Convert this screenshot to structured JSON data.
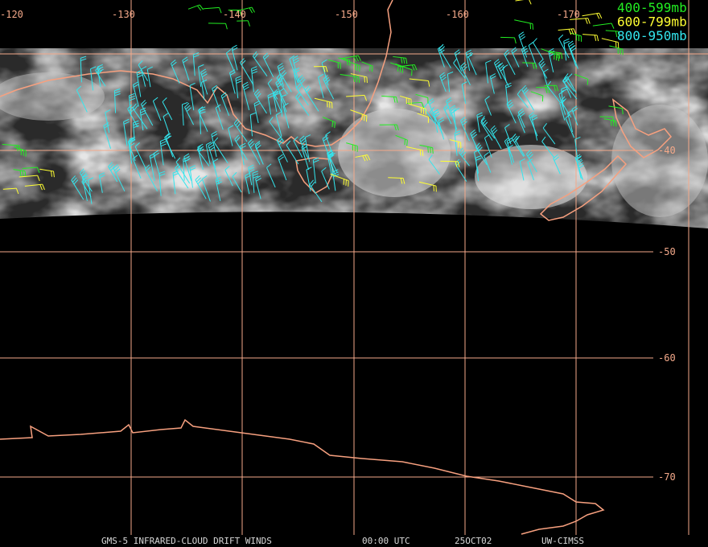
{
  "map": {
    "longitude_labels": [
      "-120",
      "-130",
      "-140",
      "-150",
      "-160",
      "-170"
    ],
    "latitude_labels": [
      "-40",
      "-50",
      "-60",
      "-70"
    ],
    "legend": [
      {
        "label": "400-599mb",
        "color": "#22ee22"
      },
      {
        "label": "600-799mb",
        "color": "#ffff33"
      },
      {
        "label": "800-950mb",
        "color": "#33e6ee"
      }
    ],
    "footer": [
      "GMS-5 INFRARED-CLOUD DRIFT WINDS",
      "00:00 UTC",
      "25OCT02",
      "UW-CIMSS"
    ]
  }
}
